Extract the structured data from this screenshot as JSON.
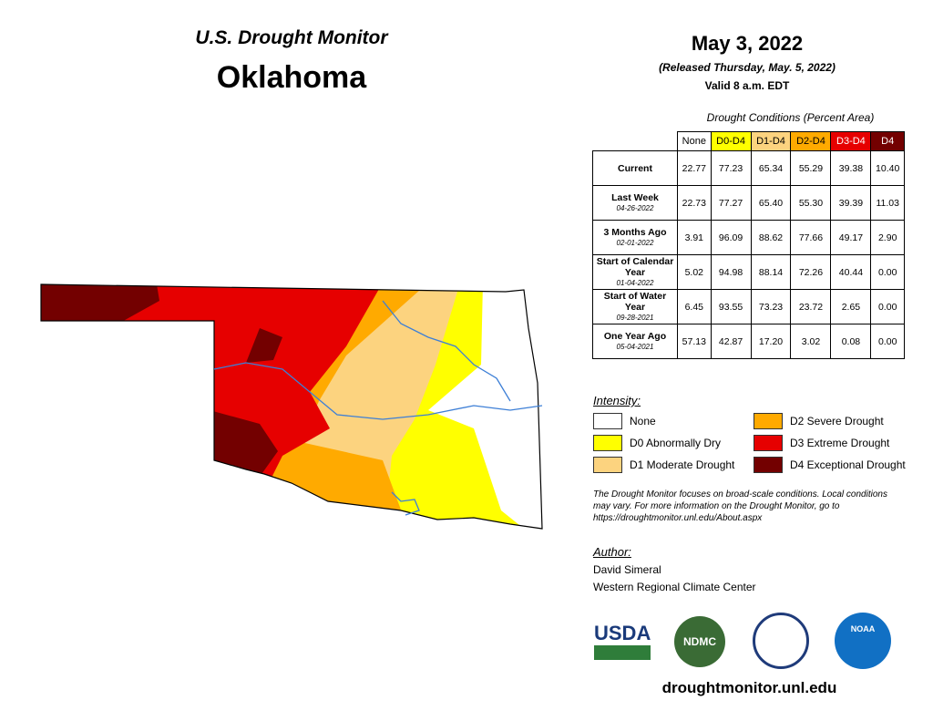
{
  "header": {
    "title": "U.S. Drought Monitor",
    "state": "Oklahoma",
    "date": "May 3, 2022",
    "released": "(Released Thursday, May. 5, 2022)",
    "valid": "Valid 8 a.m. EDT"
  },
  "table": {
    "caption": "Drought Conditions (Percent Area)",
    "columns": [
      {
        "label": "None",
        "color": "#ffffff"
      },
      {
        "label": "D0-D4",
        "color": "#ffff00"
      },
      {
        "label": "D1-D4",
        "color": "#fcd37f"
      },
      {
        "label": "D2-D4",
        "color": "#ffaa00"
      },
      {
        "label": "D3-D4",
        "color": "#e60000"
      },
      {
        "label": "D4",
        "color": "#730000"
      }
    ],
    "rows": [
      {
        "label": "Current",
        "values": [
          "22.77",
          "77.23",
          "65.34",
          "55.29",
          "39.38",
          "10.40"
        ]
      },
      {
        "label": "Last Week",
        "date": "04-26-2022",
        "values": [
          "22.73",
          "77.27",
          "65.40",
          "55.30",
          "39.39",
          "11.03"
        ]
      },
      {
        "label": "3 Months Ago",
        "date": "02-01-2022",
        "values": [
          "3.91",
          "96.09",
          "88.62",
          "77.66",
          "49.17",
          "2.90"
        ]
      },
      {
        "label": "Start of Calendar Year",
        "date": "01-04-2022",
        "values": [
          "5.02",
          "94.98",
          "88.14",
          "72.26",
          "40.44",
          "0.00"
        ]
      },
      {
        "label": "Start of Water Year",
        "date": "09-28-2021",
        "values": [
          "6.45",
          "93.55",
          "73.23",
          "23.72",
          "2.65",
          "0.00"
        ]
      },
      {
        "label": "One Year Ago",
        "date": "05-04-2021",
        "values": [
          "57.13",
          "42.87",
          "17.20",
          "3.02",
          "0.08",
          "0.00"
        ]
      }
    ]
  },
  "legend": {
    "title": "Intensity:",
    "items": [
      {
        "label": "None",
        "color": "#ffffff"
      },
      {
        "label": "D0 Abnormally Dry",
        "color": "#ffff00"
      },
      {
        "label": "D1 Moderate Drought",
        "color": "#fcd37f"
      },
      {
        "label": "D2 Severe Drought",
        "color": "#ffaa00"
      },
      {
        "label": "D3 Extreme Drought",
        "color": "#e60000"
      },
      {
        "label": "D4 Exceptional Drought",
        "color": "#730000"
      }
    ]
  },
  "note": "The Drought Monitor focuses on broad-scale conditions. Local conditions may vary. For more information on the Drought Monitor, go to https://droughtmonitor.unl.edu/About.aspx",
  "author": {
    "heading": "Author:",
    "name": "David Simeral",
    "org": "Western Regional Climate Center"
  },
  "logos": {
    "usda": "USDA",
    "ndmc": "NDMC",
    "noaa": "NOAA"
  },
  "url": "droughtmonitor.unl.edu"
}
